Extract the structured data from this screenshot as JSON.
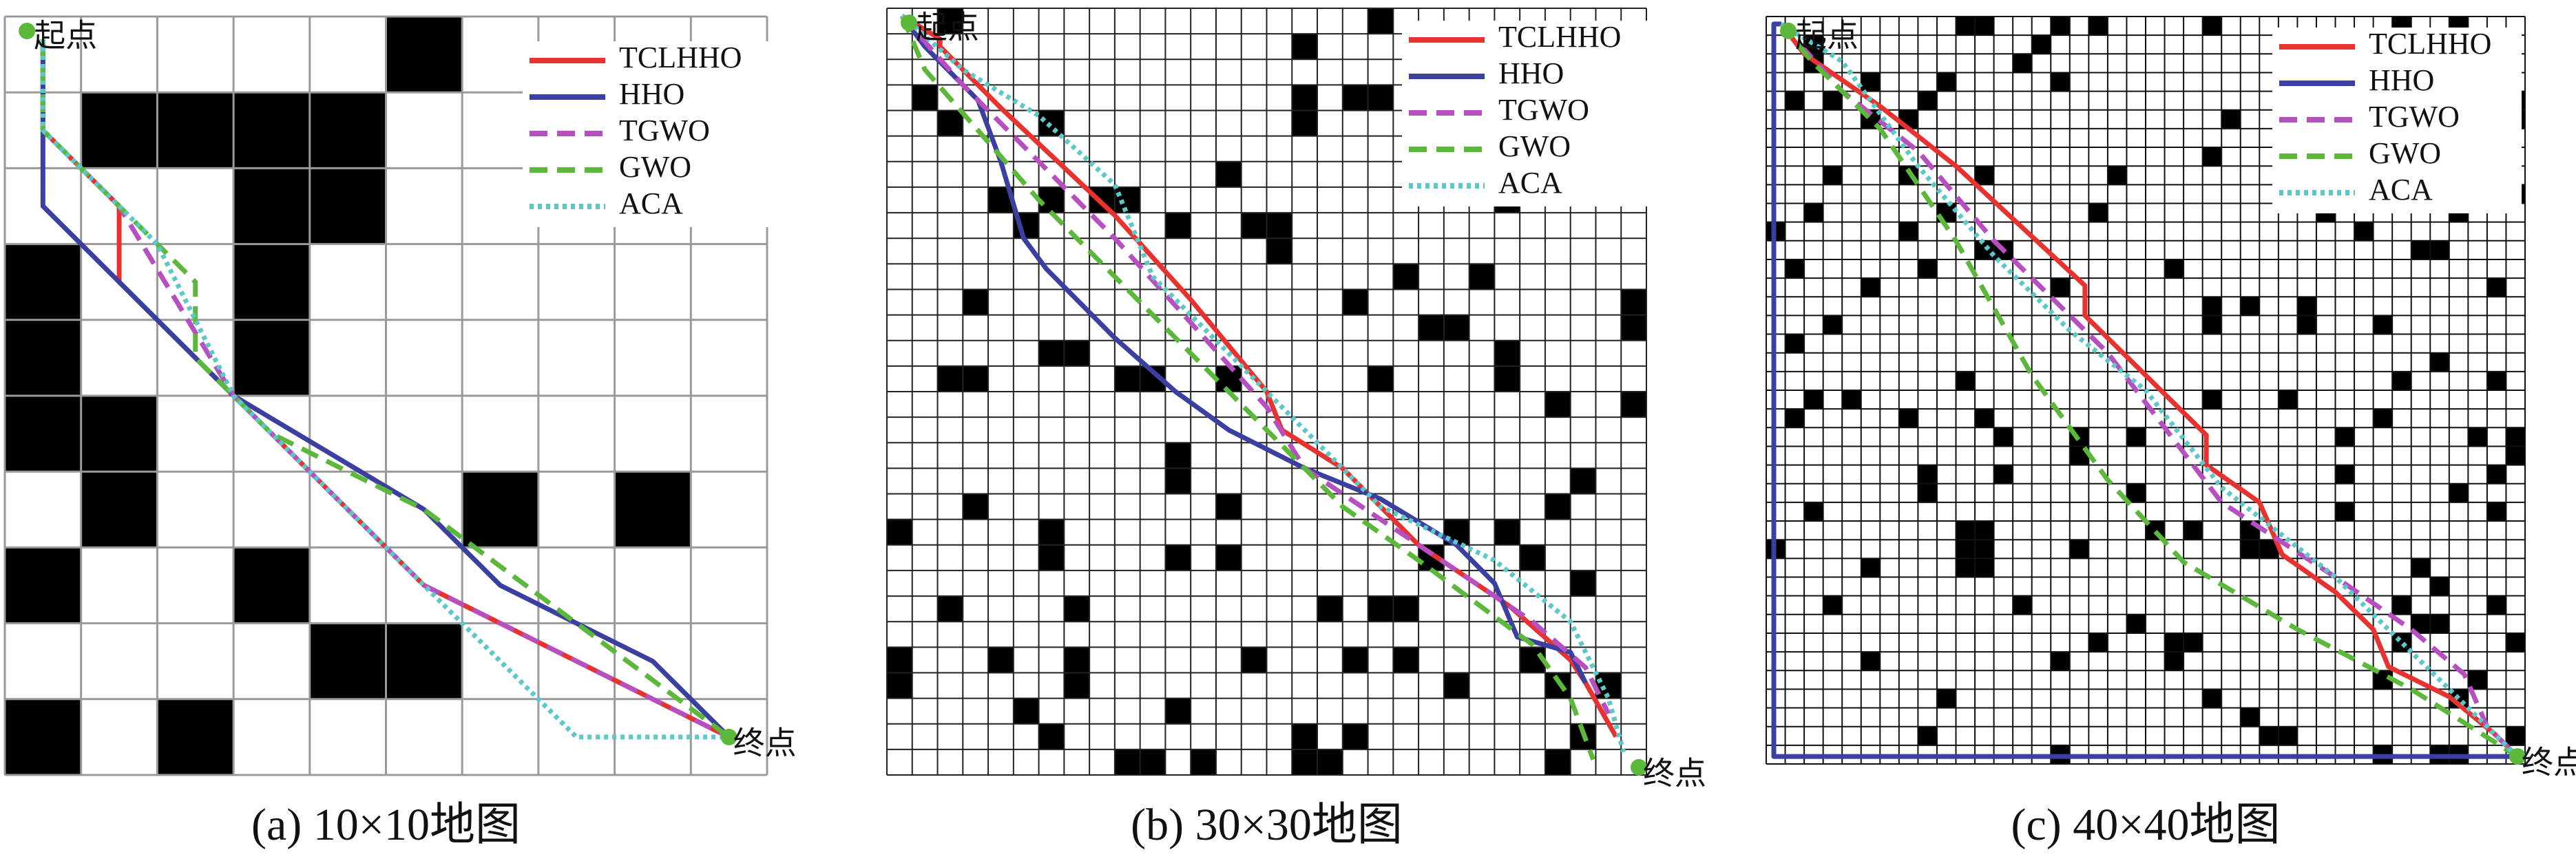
{
  "panels": [
    {
      "caption": "(a) 10×10地图",
      "grid_size": 10,
      "start_label": "起点",
      "end_label": "终点",
      "legend": [
        "TCLHHO",
        "HHO",
        "TGWO",
        "GWO",
        "ACA"
      ]
    },
    {
      "caption": "(b) 30×30地图",
      "grid_size": 30,
      "start_label": "起点",
      "end_label": "终点",
      "legend": [
        "TCLHHO",
        "HHO",
        "TGWO",
        "GWO",
        "ACA"
      ]
    },
    {
      "caption": "(c) 40×40地图",
      "grid_size": 40,
      "start_label": "起点",
      "end_label": "终点",
      "legend": [
        "TCLHHO",
        "HHO",
        "TGWO",
        "GWO",
        "ACA"
      ]
    }
  ]
}
